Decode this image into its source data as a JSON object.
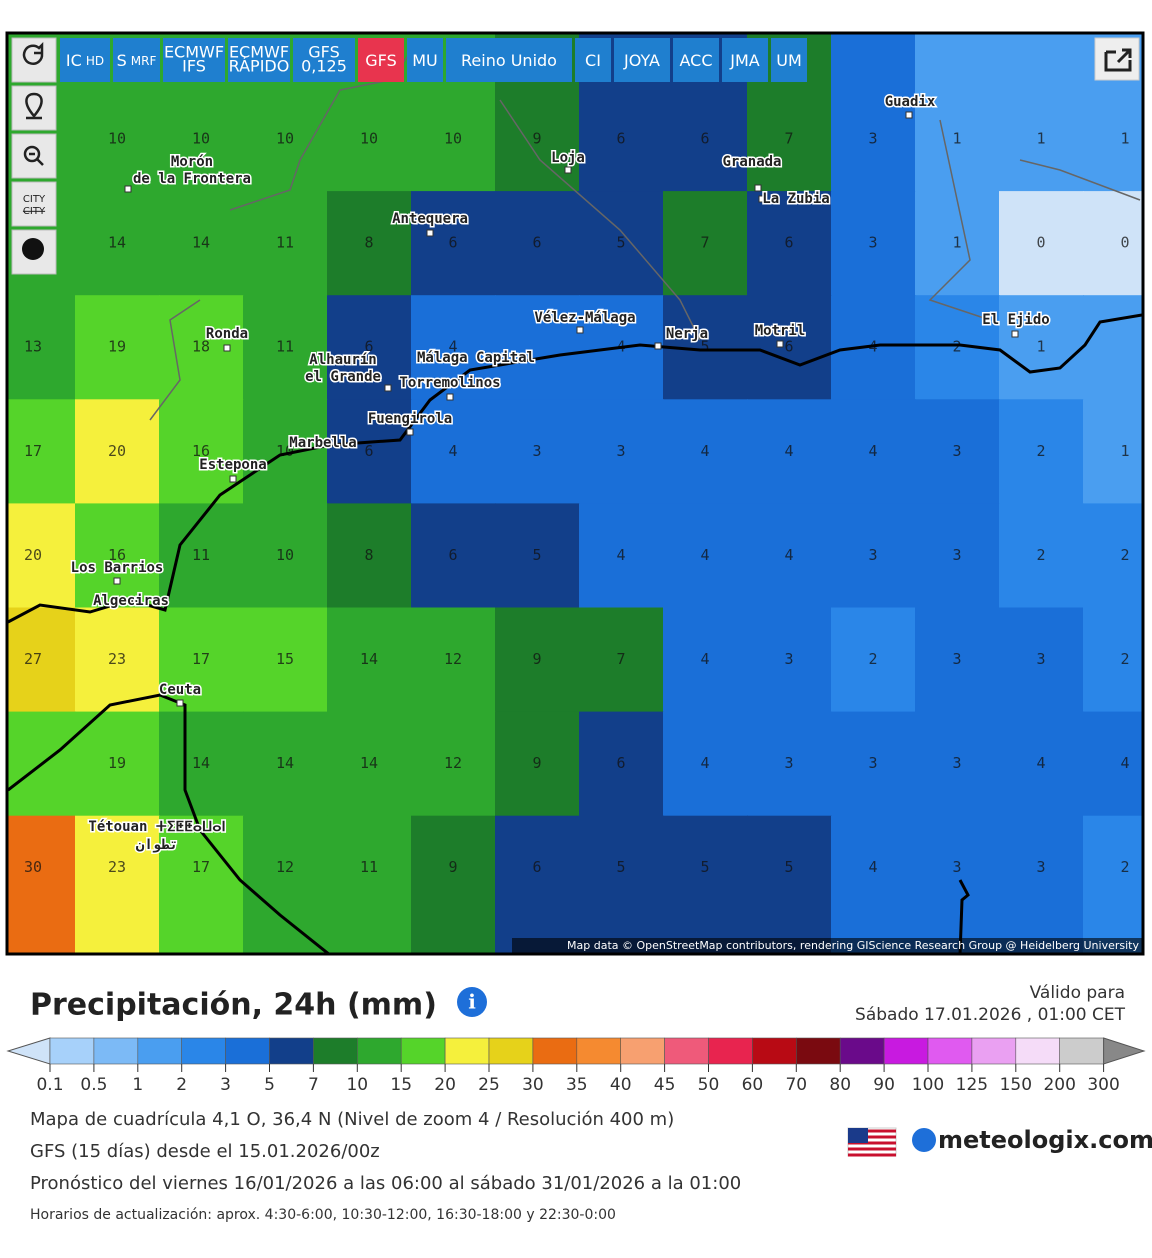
{
  "toolbar": [
    {
      "text": "IC",
      "sub": "HD"
    },
    {
      "text": "S",
      "sub": "MRF"
    },
    {
      "lines": [
        "ECMWF",
        "IFS"
      ]
    },
    {
      "lines": [
        "ECMWF",
        "RÁPIDO"
      ]
    },
    {
      "lines": [
        "GFS",
        "0,125"
      ]
    },
    {
      "text": "GFS",
      "active": true
    },
    {
      "text": "MU"
    },
    {
      "text": "Reino Unido"
    },
    {
      "text": "CI"
    },
    {
      "text": "JOYA"
    },
    {
      "text": "ACC"
    },
    {
      "text": "JMA"
    },
    {
      "text": "UM"
    }
  ],
  "side_city": "CITY",
  "cities": [
    [
      "Guadix"
    ],
    [
      "Loja"
    ],
    [
      "Granada"
    ],
    [
      "La Zubia"
    ],
    [
      "Antequera"
    ],
    [
      "Morón",
      "de la Frontera"
    ],
    [
      "Ronda"
    ],
    [
      "Vélez-Málaga"
    ],
    [
      "Nerja"
    ],
    [
      "Motril"
    ],
    [
      "El Ejido"
    ],
    [
      "Alhaurín",
      "el Grande"
    ],
    [
      "Málaga Capital"
    ],
    [
      "Torremolinos"
    ],
    [
      "Fuengirola"
    ],
    [
      "Marbella"
    ],
    [
      "Estepona"
    ],
    [
      "Los Barrios"
    ],
    [
      "Algeciras"
    ],
    [
      "Ceuta"
    ],
    [
      "Tétouan ⵜⵉⵟⵟⴰⵡⴰⵏ"
    ],
    [
      "تطوان"
    ]
  ],
  "grid": [
    [
      null,
      10,
      10,
      10,
      10,
      10,
      9,
      6,
      6,
      7,
      3,
      1,
      1,
      1
    ],
    [
      null,
      14,
      14,
      11,
      8,
      6,
      6,
      5,
      7,
      6,
      3,
      1,
      0,
      0
    ],
    [
      13,
      19,
      18,
      11,
      6,
      4,
      null,
      4,
      5,
      6,
      4,
      2,
      1,
      null
    ],
    [
      17,
      20,
      16,
      10,
      6,
      4,
      3,
      3,
      4,
      4,
      4,
      3,
      2,
      1
    ],
    [
      20,
      16,
      11,
      10,
      8,
      6,
      5,
      4,
      4,
      4,
      3,
      3,
      2,
      2
    ],
    [
      27,
      23,
      17,
      15,
      14,
      12,
      9,
      7,
      4,
      3,
      2,
      3,
      3,
      2
    ],
    [
      null,
      19,
      14,
      14,
      14,
      12,
      9,
      6,
      4,
      3,
      3,
      3,
      4,
      4
    ],
    [
      30,
      23,
      17,
      12,
      11,
      9,
      6,
      5,
      5,
      5,
      4,
      3,
      3,
      2
    ]
  ],
  "attribution": "Map data © OpenStreetMap contributors, rendering GIScience Research Group @ Heidelberg University",
  "title": "Precipitación, 24h (mm)",
  "valid_label": "Válido para",
  "valid_time": "Sábado 17.01.2026 , 01:00 CET",
  "legend": {
    "thresholds": [
      0.1,
      0.5,
      1,
      2,
      3,
      5,
      7,
      10,
      15,
      20,
      25,
      30,
      35,
      40,
      45,
      50,
      60,
      70,
      80,
      90,
      100,
      125,
      150,
      200,
      300
    ],
    "colors": [
      "#a7d1fa",
      "#7cbaf6",
      "#4a9ef0",
      "#2a86e8",
      "#1a6fd8",
      "#123f8a",
      "#1d7d2a",
      "#2ea82e",
      "#55d42a",
      "#f5f03c",
      "#e6d21a",
      "#ea6c12",
      "#f58a30",
      "#f7a070",
      "#ef5a7a",
      "#e8244f",
      "#b80a14",
      "#7a0a10",
      "#6a0a8a",
      "#c81ae0",
      "#e05af0",
      "#eaa0f2",
      "#f5dcf8",
      "#cccccc"
    ],
    "under_color": "#cfe3f8",
    "over_color": "#888888"
  },
  "info_lines": [
    "Mapa de cuadrícula 4,1 O, 36,4 N (Nivel de zoom 4 / Resolución 400 m)",
    "GFS (15 días) desde el 15.01.2026/00z",
    "Pronóstico del viernes 16/01/2026 a las 06:00 al sábado 31/01/2026 a la 01:00",
    "Horarios de actualización: aprox. 4:30-6:00, 10:30-12:00, 16:30-18:00 y 22:30-0:00"
  ],
  "logo": "meteologix.com"
}
